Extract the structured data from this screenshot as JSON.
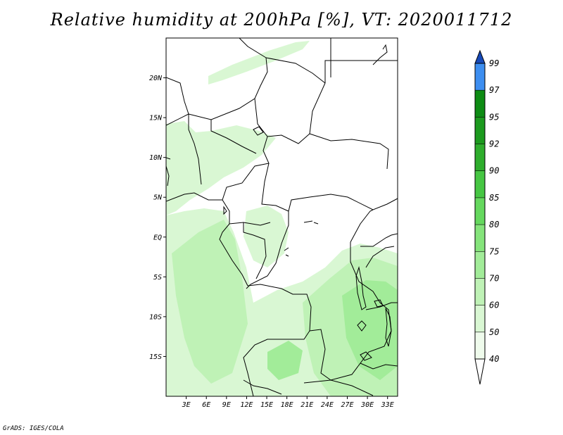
{
  "title": "Relative humidity at 200hPa [%], VT: 2020011712",
  "credit": "GrADS: IGES/COLA",
  "map": {
    "lon_range": [
      0,
      34.5
    ],
    "lat_range": [
      -20,
      25
    ],
    "lat_ticks": [
      {
        "value": 20,
        "label": "20N"
      },
      {
        "value": 15,
        "label": "15N"
      },
      {
        "value": 10,
        "label": "10N"
      },
      {
        "value": 5,
        "label": "5N"
      },
      {
        "value": 0,
        "label": "EQ"
      },
      {
        "value": -5,
        "label": "5S"
      },
      {
        "value": -10,
        "label": "10S"
      },
      {
        "value": -15,
        "label": "15S"
      }
    ],
    "lon_ticks": [
      {
        "value": 3,
        "label": "3E"
      },
      {
        "value": 6,
        "label": "6E"
      },
      {
        "value": 9,
        "label": "9E"
      },
      {
        "value": 12,
        "label": "12E"
      },
      {
        "value": 15,
        "label": "15E"
      },
      {
        "value": 18,
        "label": "18E"
      },
      {
        "value": 21,
        "label": "21E"
      },
      {
        "value": 24,
        "label": "24E"
      },
      {
        "value": 27,
        "label": "27E"
      },
      {
        "value": 30,
        "label": "30E"
      },
      {
        "value": 33,
        "label": "33E"
      }
    ]
  },
  "colorbar": {
    "levels": [
      {
        "value": "40",
        "color": "#effbec"
      },
      {
        "value": "50",
        "color": "#d9f7d3"
      },
      {
        "value": "60",
        "color": "#bff2b6"
      },
      {
        "value": "70",
        "color": "#a2ec99"
      },
      {
        "value": "75",
        "color": "#85e47b"
      },
      {
        "value": "80",
        "color": "#65d85e"
      },
      {
        "value": "85",
        "color": "#46c643"
      },
      {
        "value": "90",
        "color": "#2ead2c"
      },
      {
        "value": "92",
        "color": "#1c9a1e"
      },
      {
        "value": "95",
        "color": "#0e8c14"
      },
      {
        "value": "97",
        "color": "#3d8ef0"
      },
      {
        "value": "99",
        "color": "#2069dc"
      }
    ],
    "below_color": "#ffffff",
    "above_color": "#1649b8"
  }
}
